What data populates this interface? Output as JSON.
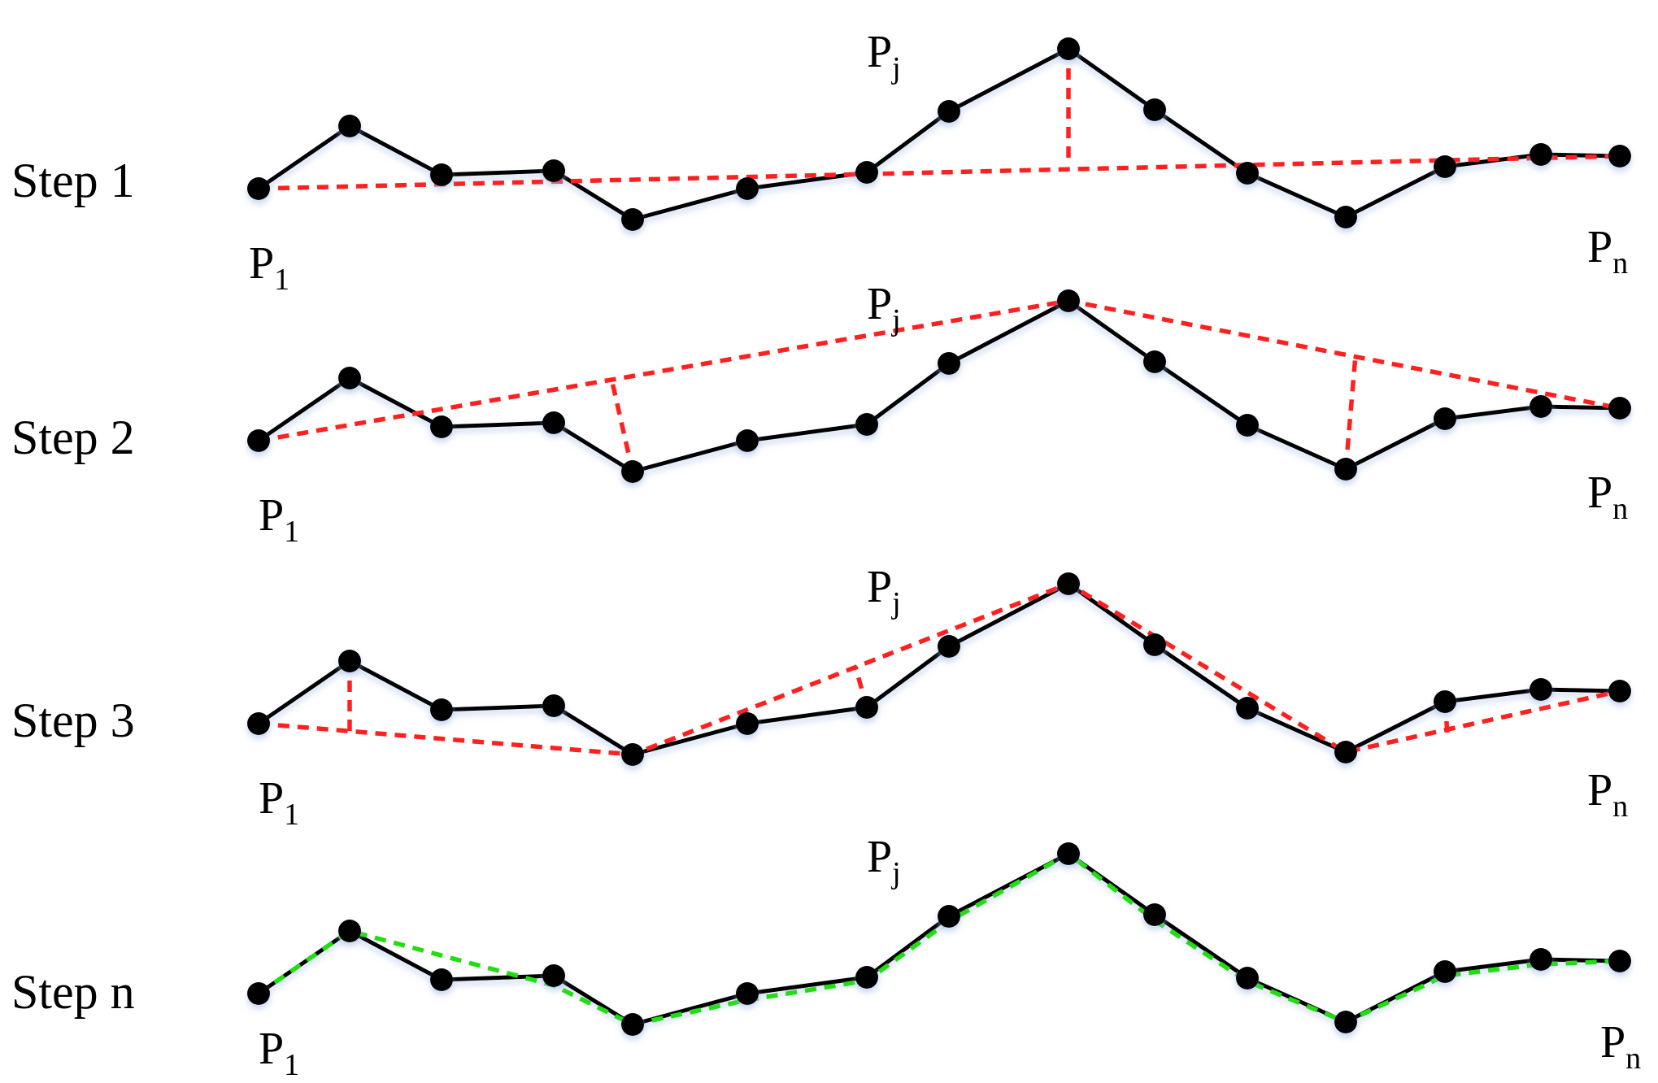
{
  "colors": {
    "curve": "#000000",
    "approximation": "#ff2020",
    "final_approximation": "#22dd11"
  },
  "steps": [
    {
      "label": "Step 1",
      "labels": {
        "first": {
          "p": "P",
          "sub": "1"
        },
        "split": {
          "p": "P",
          "sub": "j"
        },
        "last": {
          "p": "P",
          "sub": "n"
        }
      },
      "final": false
    },
    {
      "label": "Step 2",
      "labels": {
        "first": {
          "p": "P",
          "sub": "1"
        },
        "split": {
          "p": "P",
          "sub": "j"
        },
        "last": {
          "p": "P",
          "sub": "n"
        }
      },
      "final": false
    },
    {
      "label": "Step 3",
      "labels": {
        "first": {
          "p": "P",
          "sub": "1"
        },
        "split": {
          "p": "P",
          "sub": "j"
        },
        "last": {
          "p": "P",
          "sub": "n"
        }
      },
      "final": false
    },
    {
      "label": "Step n",
      "labels": {
        "first": {
          "p": "P",
          "sub": "1"
        },
        "split": {
          "p": "P",
          "sub": "j"
        },
        "last": {
          "p": "P",
          "sub": "n"
        }
      },
      "final": true
    }
  ]
}
